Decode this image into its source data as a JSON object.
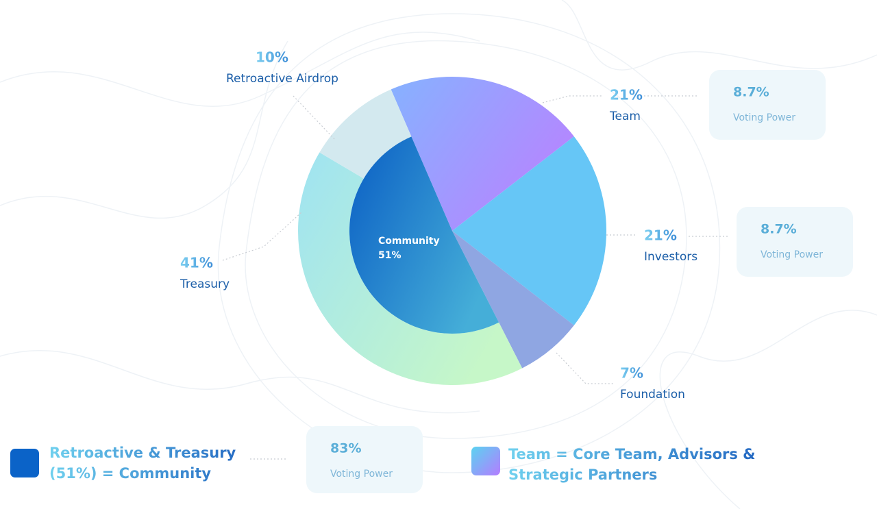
{
  "chart_data": {
    "type": "pie",
    "categories": [
      "Team",
      "Investors",
      "Foundation",
      "Treasury",
      "Retroactive Airdrop"
    ],
    "values": [
      21,
      21,
      7,
      41,
      10
    ],
    "value_labels": [
      "21%",
      "21%",
      "7%",
      "41%",
      "10%"
    ],
    "colors": [
      [
        "#86b2ff",
        "#b784ff"
      ],
      "#66c6f6",
      "#8fa6e2",
      [
        "#9fe3f2",
        "#c6f7c8"
      ],
      "#d3e9ef"
    ],
    "center": {
      "label": "Community",
      "value": 51,
      "value_label": "51%",
      "color": [
        "#0a5ec4",
        "#45aed8"
      ]
    },
    "voting_power": {
      "label": "Voting Power",
      "values": [
        8.7,
        8.7,
        83
      ],
      "value_labels": [
        "8.7%",
        "8.7%",
        "83%"
      ]
    },
    "legend": [
      {
        "text": "Retroactive & Treasury (51%) = Community",
        "color": "#0b63c8"
      },
      {
        "text": "Team = Core Team, Advisors & Strategic Partners",
        "color": [
          "#5ad3f0",
          "#b47cff"
        ]
      }
    ]
  }
}
